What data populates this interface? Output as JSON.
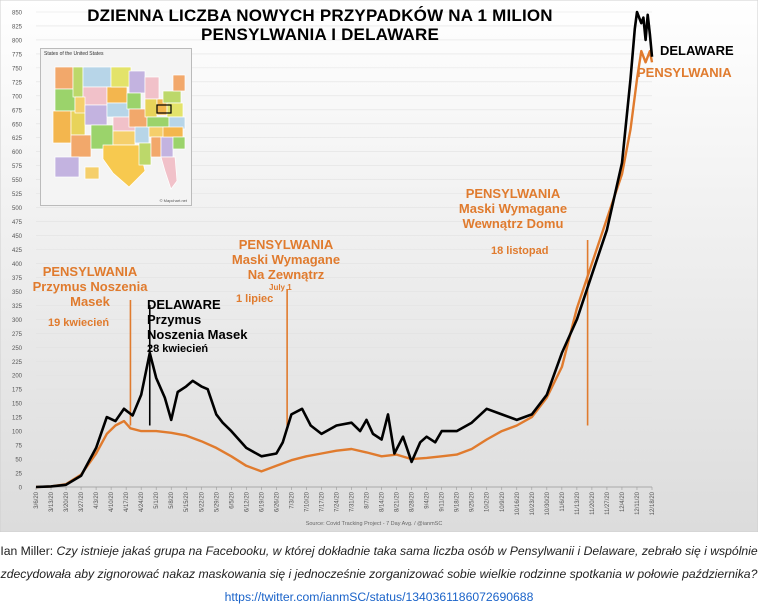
{
  "title": {
    "line1": "DZIENNA LICZBA NOWYCH PRZYPADKÓW NA 1 MILION",
    "line2": "PENSYLWANIA I DELAWARE"
  },
  "inset_map": {
    "title": "States of the United States",
    "footer": "© Mapchart.net"
  },
  "source_text": "Source: Covid Tracking Project - 7 Day Avg. / @ianmSC",
  "series_labels": {
    "delaware": "DELAWARE",
    "pennsylvania": "PENSYLWANIA"
  },
  "annotations": {
    "pa_masks": {
      "line1": "PENSYLWANIA",
      "line2": "Przymus Noszenia",
      "line3": "Masek",
      "date": "19 kwiecień"
    },
    "de_masks": {
      "line1": "DELAWARE",
      "line2": "Przymus",
      "line3": "Noszenia Masek",
      "date": "28 kwiecień"
    },
    "pa_outdoor": {
      "line1": "PENSYLWANIA",
      "line2": "Maski Wymagane",
      "line3": "Na Zewnątrz",
      "date_small": "July 1",
      "date": "1 lipiec"
    },
    "pa_indoor": {
      "line1": "PENSYLWANIA",
      "line2": "Maski Wymagane",
      "line3": "Wewnątrz Domu",
      "date": "18 listopad"
    }
  },
  "caption": {
    "author": "Ian Miller:",
    "text": "Czy istnieje jakaś grupa na Facebooku, w której dokładnie taka sama liczba osób w Pensylwanii i Delaware, zebrało się i wspólnie zdecydowała aby zignorować nakaz maskowania się i jednocześnie zorganizować sobie wielkie rodzinne spotkania w połowie października?",
    "link": "https://twitter.com/ianmSC/status/1340361186072690688"
  },
  "colors": {
    "pennsylvania": "#e07b2e",
    "delaware": "#000000",
    "plot_bg_top": "#ffffff",
    "plot_bg_bottom": "#dcdcdc"
  },
  "chart_data": {
    "type": "line",
    "ylim": [
      0,
      850
    ],
    "y_ticks": [
      0,
      25,
      50,
      75,
      100,
      125,
      150,
      175,
      200,
      225,
      250,
      275,
      300,
      325,
      350,
      375,
      400,
      425,
      450,
      475,
      500,
      525,
      550,
      575,
      600,
      625,
      650,
      675,
      700,
      725,
      750,
      775,
      800,
      825,
      850
    ],
    "x_ticks": [
      "3/6/20",
      "3/13/20",
      "3/20/20",
      "3/27/20",
      "4/3/20",
      "4/10/20",
      "4/17/20",
      "4/24/20",
      "5/1/20",
      "5/8/20",
      "5/15/20",
      "5/22/20",
      "5/29/20",
      "6/5/20",
      "6/12/20",
      "6/19/20",
      "6/26/20",
      "7/3/20",
      "7/10/20",
      "7/17/20",
      "7/24/20",
      "7/31/20",
      "8/7/20",
      "8/14/20",
      "8/21/20",
      "8/28/20",
      "9/4/20",
      "9/11/20",
      "9/18/20",
      "9/25/20",
      "10/2/20",
      "10/9/20",
      "10/16/20",
      "10/23/20",
      "10/30/20",
      "11/6/20",
      "11/13/20",
      "11/20/20",
      "11/27/20",
      "12/4/20",
      "12/11/20",
      "12/18/20"
    ],
    "x_start": "2020-03-06",
    "x_end": "2020-12-18",
    "grid": true,
    "series": [
      {
        "name": "PENSYLWANIA",
        "points": [
          [
            "2020-03-06",
            0
          ],
          [
            "2020-03-13",
            1
          ],
          [
            "2020-03-20",
            5
          ],
          [
            "2020-03-27",
            22
          ],
          [
            "2020-04-03",
            60
          ],
          [
            "2020-04-08",
            95
          ],
          [
            "2020-04-12",
            110
          ],
          [
            "2020-04-16",
            118
          ],
          [
            "2020-04-19",
            105
          ],
          [
            "2020-04-24",
            100
          ],
          [
            "2020-05-01",
            100
          ],
          [
            "2020-05-08",
            97
          ],
          [
            "2020-05-15",
            92
          ],
          [
            "2020-05-22",
            82
          ],
          [
            "2020-05-29",
            70
          ],
          [
            "2020-06-05",
            55
          ],
          [
            "2020-06-12",
            38
          ],
          [
            "2020-06-19",
            28
          ],
          [
            "2020-06-26",
            38
          ],
          [
            "2020-07-03",
            48
          ],
          [
            "2020-07-10",
            55
          ],
          [
            "2020-07-17",
            60
          ],
          [
            "2020-07-24",
            65
          ],
          [
            "2020-07-31",
            68
          ],
          [
            "2020-08-07",
            62
          ],
          [
            "2020-08-14",
            55
          ],
          [
            "2020-08-21",
            58
          ],
          [
            "2020-08-28",
            50
          ],
          [
            "2020-09-04",
            52
          ],
          [
            "2020-09-11",
            55
          ],
          [
            "2020-09-18",
            58
          ],
          [
            "2020-09-25",
            68
          ],
          [
            "2020-10-02",
            85
          ],
          [
            "2020-10-09",
            100
          ],
          [
            "2020-10-16",
            110
          ],
          [
            "2020-10-23",
            125
          ],
          [
            "2020-10-30",
            160
          ],
          [
            "2020-11-06",
            215
          ],
          [
            "2020-11-13",
            320
          ],
          [
            "2020-11-20",
            400
          ],
          [
            "2020-11-27",
            480
          ],
          [
            "2020-12-04",
            560
          ],
          [
            "2020-12-08",
            640
          ],
          [
            "2020-12-11",
            730
          ],
          [
            "2020-12-13",
            780
          ],
          [
            "2020-12-15",
            760
          ],
          [
            "2020-12-17",
            780
          ],
          [
            "2020-12-18",
            760
          ]
        ]
      },
      {
        "name": "DELAWARE",
        "points": [
          [
            "2020-03-06",
            0
          ],
          [
            "2020-03-13",
            1
          ],
          [
            "2020-03-20",
            4
          ],
          [
            "2020-03-27",
            20
          ],
          [
            "2020-04-03",
            70
          ],
          [
            "2020-04-08",
            125
          ],
          [
            "2020-04-12",
            118
          ],
          [
            "2020-04-16",
            140
          ],
          [
            "2020-04-20",
            128
          ],
          [
            "2020-04-24",
            165
          ],
          [
            "2020-04-28",
            240
          ],
          [
            "2020-05-01",
            195
          ],
          [
            "2020-05-05",
            160
          ],
          [
            "2020-05-08",
            120
          ],
          [
            "2020-05-11",
            170
          ],
          [
            "2020-05-15",
            180
          ],
          [
            "2020-05-18",
            190
          ],
          [
            "2020-05-22",
            180
          ],
          [
            "2020-05-25",
            175
          ],
          [
            "2020-05-29",
            130
          ],
          [
            "2020-06-01",
            115
          ],
          [
            "2020-06-05",
            100
          ],
          [
            "2020-06-12",
            70
          ],
          [
            "2020-06-19",
            55
          ],
          [
            "2020-06-26",
            60
          ],
          [
            "2020-06-29",
            80
          ],
          [
            "2020-07-03",
            130
          ],
          [
            "2020-07-08",
            140
          ],
          [
            "2020-07-12",
            110
          ],
          [
            "2020-07-17",
            95
          ],
          [
            "2020-07-24",
            110
          ],
          [
            "2020-07-31",
            115
          ],
          [
            "2020-08-04",
            100
          ],
          [
            "2020-08-07",
            120
          ],
          [
            "2020-08-10",
            95
          ],
          [
            "2020-08-14",
            85
          ],
          [
            "2020-08-17",
            130
          ],
          [
            "2020-08-20",
            60
          ],
          [
            "2020-08-24",
            90
          ],
          [
            "2020-08-28",
            45
          ],
          [
            "2020-09-01",
            80
          ],
          [
            "2020-09-04",
            90
          ],
          [
            "2020-09-08",
            80
          ],
          [
            "2020-09-11",
            100
          ],
          [
            "2020-09-18",
            100
          ],
          [
            "2020-09-25",
            115
          ],
          [
            "2020-10-02",
            140
          ],
          [
            "2020-10-09",
            130
          ],
          [
            "2020-10-16",
            120
          ],
          [
            "2020-10-23",
            130
          ],
          [
            "2020-10-30",
            165
          ],
          [
            "2020-11-06",
            240
          ],
          [
            "2020-11-13",
            300
          ],
          [
            "2020-11-20",
            380
          ],
          [
            "2020-11-27",
            460
          ],
          [
            "2020-12-04",
            580
          ],
          [
            "2020-12-08",
            730
          ],
          [
            "2020-12-10",
            820
          ],
          [
            "2020-12-11",
            850
          ],
          [
            "2020-12-13",
            830
          ],
          [
            "2020-12-14",
            840
          ],
          [
            "2020-12-15",
            800
          ],
          [
            "2020-12-16",
            845
          ],
          [
            "2020-12-17",
            810
          ],
          [
            "2020-12-18",
            770
          ]
        ]
      }
    ]
  }
}
